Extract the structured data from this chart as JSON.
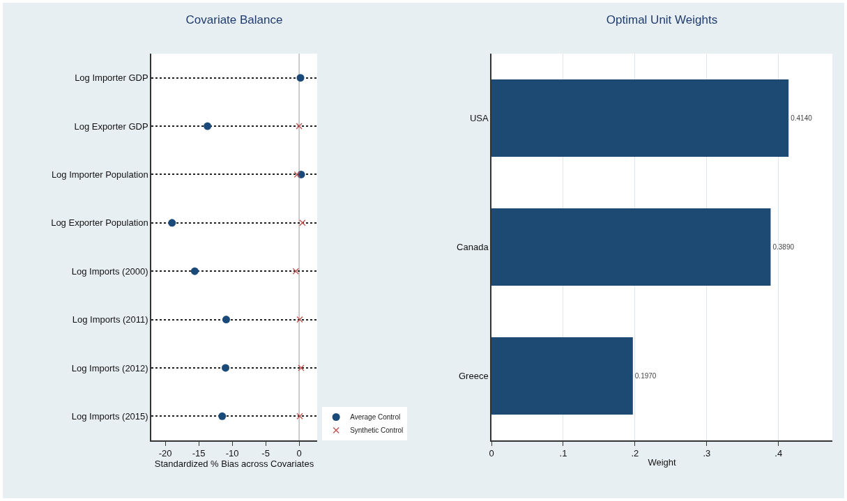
{
  "chart_data": [
    {
      "type": "scatter",
      "title": "Covariate Balance",
      "xlabel": "Standardized % Bias across Covariates",
      "orientation": "horizontal",
      "categories": [
        "Log Importer GDP",
        "Log Exporter GDP",
        "Log Importer Population",
        "Log Exporter Population",
        "Log Imports (2000)",
        "Log Imports (2011)",
        "Log Imports (2012)",
        "Log Imports (2015)"
      ],
      "series": [
        {
          "name": "Average Control",
          "color": "#1a4a7a",
          "marker": "circle",
          "values": [
            0.2,
            -13.7,
            0.3,
            -19,
            -15.6,
            -10.9,
            -11,
            -11.5
          ]
        },
        {
          "name": "Synthetic Control",
          "color": "#c0504d",
          "marker": "cross",
          "values": [
            null,
            0,
            -0.3,
            0.5,
            -0.5,
            0.1,
            0.3,
            0.1
          ]
        }
      ],
      "xlim": [
        -22.1,
        2.7
      ],
      "xticks": [
        -20,
        -15,
        -10,
        -5,
        0
      ],
      "grid": "y",
      "legend": "bottom right",
      "ref_lines": [
        {
          "axis": "x",
          "value": 0,
          "color": "#999999"
        }
      ]
    },
    {
      "type": "bar",
      "title": "Optimal Unit Weights",
      "xlabel": "Weight",
      "orientation": "horizontal",
      "categories": [
        "USA",
        "Canada",
        "Greece"
      ],
      "values": [
        0.414,
        0.389,
        0.197
      ],
      "value_labels": [
        "0.4140",
        "0.3890",
        "0.1970"
      ],
      "color": "#1c4a72",
      "xlim": [
        0,
        0.475
      ],
      "xticks": [
        0,
        {
          "value": 0.1,
          "label": ".1"
        },
        {
          "value": 0.2,
          "label": ".2"
        },
        {
          "value": 0.3,
          "label": ".3"
        },
        {
          "value": 0.4,
          "label": ".4"
        }
      ],
      "grid": "x"
    }
  ]
}
